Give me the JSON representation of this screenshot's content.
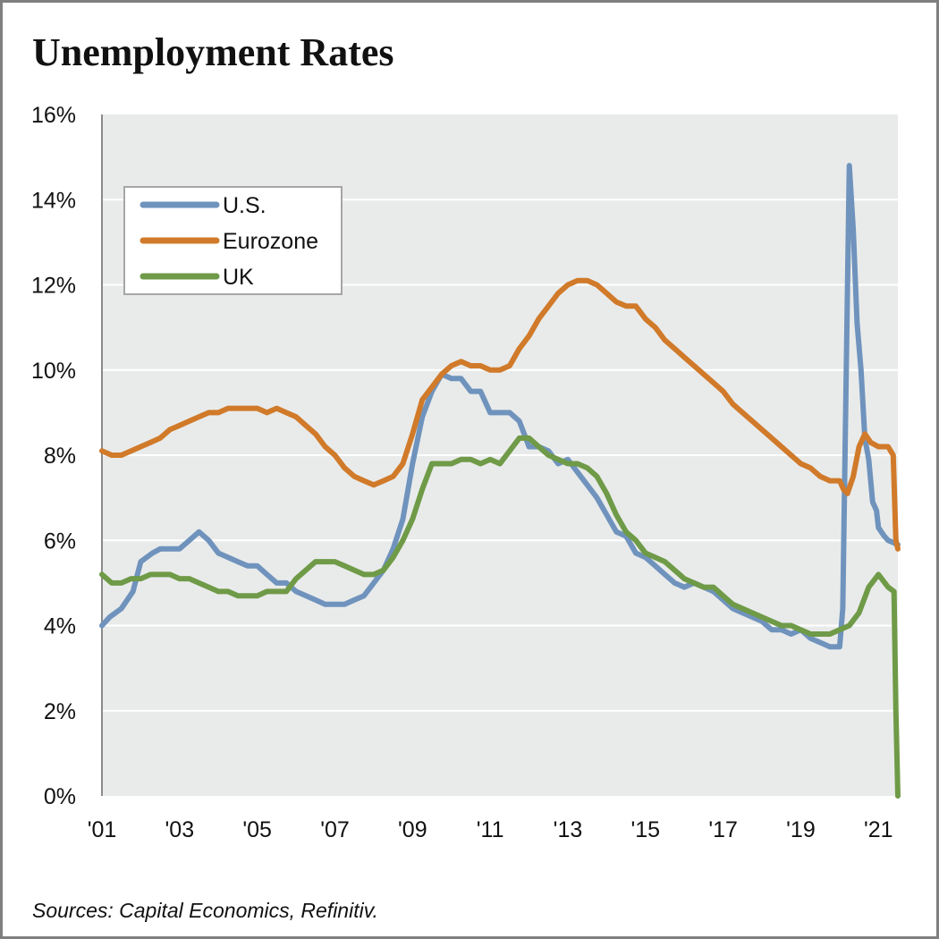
{
  "title": "Unemployment Rates",
  "source": "Sources: Capital Economics, Refinitiv.",
  "chart_data": {
    "type": "line",
    "title": "Unemployment Rates",
    "xlabel": "",
    "ylabel": "",
    "xlim": [
      2001.0,
      2021.5
    ],
    "ylim": [
      0,
      16
    ],
    "y_ticks": [
      0,
      2,
      4,
      6,
      8,
      10,
      12,
      14,
      16
    ],
    "y_tick_labels": [
      "0%",
      "2%",
      "4%",
      "6%",
      "8%",
      "10%",
      "12%",
      "14%",
      "16%"
    ],
    "x_ticks": [
      2001,
      2003,
      2005,
      2007,
      2009,
      2011,
      2013,
      2015,
      2017,
      2019,
      2021
    ],
    "x_tick_labels": [
      "'01",
      "'03",
      "'05",
      "'07",
      "'09",
      "'11",
      "'13",
      "'15",
      "'17",
      "'19",
      "'21"
    ],
    "grid": "horizontal",
    "legend_position": "top-left",
    "series": [
      {
        "name": "U.S.",
        "color": "#6f93bd",
        "points": [
          [
            2001.0,
            4.0
          ],
          [
            2001.2,
            4.2
          ],
          [
            2001.5,
            4.4
          ],
          [
            2001.8,
            4.8
          ],
          [
            2002.0,
            5.5
          ],
          [
            2002.3,
            5.7
          ],
          [
            2002.5,
            5.8
          ],
          [
            2002.8,
            5.8
          ],
          [
            2003.0,
            5.8
          ],
          [
            2003.25,
            6.0
          ],
          [
            2003.5,
            6.2
          ],
          [
            2003.75,
            6.0
          ],
          [
            2004.0,
            5.7
          ],
          [
            2004.25,
            5.6
          ],
          [
            2004.5,
            5.5
          ],
          [
            2004.75,
            5.4
          ],
          [
            2005.0,
            5.4
          ],
          [
            2005.25,
            5.2
          ],
          [
            2005.5,
            5.0
          ],
          [
            2005.75,
            5.0
          ],
          [
            2006.0,
            4.8
          ],
          [
            2006.5,
            4.6
          ],
          [
            2006.75,
            4.5
          ],
          [
            2007.0,
            4.5
          ],
          [
            2007.25,
            4.5
          ],
          [
            2007.5,
            4.6
          ],
          [
            2007.75,
            4.7
          ],
          [
            2008.0,
            5.0
          ],
          [
            2008.25,
            5.3
          ],
          [
            2008.5,
            5.8
          ],
          [
            2008.75,
            6.5
          ],
          [
            2009.0,
            7.8
          ],
          [
            2009.25,
            8.9
          ],
          [
            2009.5,
            9.5
          ],
          [
            2009.75,
            9.9
          ],
          [
            2010.0,
            9.8
          ],
          [
            2010.25,
            9.8
          ],
          [
            2010.5,
            9.5
          ],
          [
            2010.75,
            9.5
          ],
          [
            2011.0,
            9.0
          ],
          [
            2011.25,
            9.0
          ],
          [
            2011.5,
            9.0
          ],
          [
            2011.75,
            8.8
          ],
          [
            2012.0,
            8.2
          ],
          [
            2012.25,
            8.2
          ],
          [
            2012.5,
            8.1
          ],
          [
            2012.75,
            7.8
          ],
          [
            2013.0,
            7.9
          ],
          [
            2013.25,
            7.6
          ],
          [
            2013.5,
            7.3
          ],
          [
            2013.75,
            7.0
          ],
          [
            2014.0,
            6.6
          ],
          [
            2014.25,
            6.2
          ],
          [
            2014.5,
            6.1
          ],
          [
            2014.75,
            5.7
          ],
          [
            2015.0,
            5.6
          ],
          [
            2015.25,
            5.4
          ],
          [
            2015.5,
            5.2
          ],
          [
            2015.75,
            5.0
          ],
          [
            2016.0,
            4.9
          ],
          [
            2016.25,
            5.0
          ],
          [
            2016.5,
            4.9
          ],
          [
            2016.75,
            4.8
          ],
          [
            2017.0,
            4.6
          ],
          [
            2017.25,
            4.4
          ],
          [
            2017.5,
            4.3
          ],
          [
            2017.75,
            4.2
          ],
          [
            2018.0,
            4.1
          ],
          [
            2018.25,
            3.9
          ],
          [
            2018.5,
            3.9
          ],
          [
            2018.75,
            3.8
          ],
          [
            2019.0,
            3.9
          ],
          [
            2019.25,
            3.7
          ],
          [
            2019.5,
            3.6
          ],
          [
            2019.75,
            3.5
          ],
          [
            2020.0,
            3.5
          ],
          [
            2020.08,
            4.4
          ],
          [
            2020.17,
            10.0
          ],
          [
            2020.25,
            14.8
          ],
          [
            2020.35,
            13.3
          ],
          [
            2020.45,
            11.1
          ],
          [
            2020.55,
            10.0
          ],
          [
            2020.65,
            8.4
          ],
          [
            2020.75,
            7.9
          ],
          [
            2020.85,
            6.9
          ],
          [
            2020.95,
            6.7
          ],
          [
            2021.0,
            6.3
          ],
          [
            2021.15,
            6.1
          ],
          [
            2021.25,
            6.0
          ],
          [
            2021.5,
            5.9
          ]
        ]
      },
      {
        "name": "Eurozone",
        "color": "#d07a2a",
        "points": [
          [
            2001.0,
            8.1
          ],
          [
            2001.25,
            8.0
          ],
          [
            2001.5,
            8.0
          ],
          [
            2001.75,
            8.1
          ],
          [
            2002.0,
            8.2
          ],
          [
            2002.25,
            8.3
          ],
          [
            2002.5,
            8.4
          ],
          [
            2002.75,
            8.6
          ],
          [
            2003.0,
            8.7
          ],
          [
            2003.25,
            8.8
          ],
          [
            2003.5,
            8.9
          ],
          [
            2003.75,
            9.0
          ],
          [
            2004.0,
            9.0
          ],
          [
            2004.25,
            9.1
          ],
          [
            2004.5,
            9.1
          ],
          [
            2004.75,
            9.1
          ],
          [
            2005.0,
            9.1
          ],
          [
            2005.25,
            9.0
          ],
          [
            2005.5,
            9.1
          ],
          [
            2005.75,
            9.0
          ],
          [
            2006.0,
            8.9
          ],
          [
            2006.25,
            8.7
          ],
          [
            2006.5,
            8.5
          ],
          [
            2006.75,
            8.2
          ],
          [
            2007.0,
            8.0
          ],
          [
            2007.25,
            7.7
          ],
          [
            2007.5,
            7.5
          ],
          [
            2007.75,
            7.4
          ],
          [
            2008.0,
            7.3
          ],
          [
            2008.25,
            7.4
          ],
          [
            2008.5,
            7.5
          ],
          [
            2008.75,
            7.8
          ],
          [
            2009.0,
            8.5
          ],
          [
            2009.25,
            9.3
          ],
          [
            2009.5,
            9.6
          ],
          [
            2009.75,
            9.9
          ],
          [
            2010.0,
            10.1
          ],
          [
            2010.25,
            10.2
          ],
          [
            2010.5,
            10.1
          ],
          [
            2010.75,
            10.1
          ],
          [
            2011.0,
            10.0
          ],
          [
            2011.25,
            10.0
          ],
          [
            2011.5,
            10.1
          ],
          [
            2011.75,
            10.5
          ],
          [
            2012.0,
            10.8
          ],
          [
            2012.25,
            11.2
          ],
          [
            2012.5,
            11.5
          ],
          [
            2012.75,
            11.8
          ],
          [
            2013.0,
            12.0
          ],
          [
            2013.25,
            12.1
          ],
          [
            2013.5,
            12.1
          ],
          [
            2013.75,
            12.0
          ],
          [
            2014.0,
            11.8
          ],
          [
            2014.25,
            11.6
          ],
          [
            2014.5,
            11.5
          ],
          [
            2014.75,
            11.5
          ],
          [
            2015.0,
            11.2
          ],
          [
            2015.25,
            11.0
          ],
          [
            2015.5,
            10.7
          ],
          [
            2015.75,
            10.5
          ],
          [
            2016.0,
            10.3
          ],
          [
            2016.25,
            10.1
          ],
          [
            2016.5,
            9.9
          ],
          [
            2016.75,
            9.7
          ],
          [
            2017.0,
            9.5
          ],
          [
            2017.25,
            9.2
          ],
          [
            2017.5,
            9.0
          ],
          [
            2017.75,
            8.8
          ],
          [
            2018.0,
            8.6
          ],
          [
            2018.25,
            8.4
          ],
          [
            2018.5,
            8.2
          ],
          [
            2018.75,
            8.0
          ],
          [
            2019.0,
            7.8
          ],
          [
            2019.25,
            7.7
          ],
          [
            2019.5,
            7.5
          ],
          [
            2019.75,
            7.4
          ],
          [
            2020.0,
            7.4
          ],
          [
            2020.1,
            7.2
          ],
          [
            2020.2,
            7.1
          ],
          [
            2020.35,
            7.5
          ],
          [
            2020.5,
            8.2
          ],
          [
            2020.65,
            8.5
          ],
          [
            2020.8,
            8.3
          ],
          [
            2021.0,
            8.2
          ],
          [
            2021.25,
            8.2
          ],
          [
            2021.38,
            8.0
          ],
          [
            2021.45,
            6.0
          ],
          [
            2021.5,
            5.8
          ]
        ]
      },
      {
        "name": "UK",
        "color": "#6f9a47",
        "points": [
          [
            2001.0,
            5.2
          ],
          [
            2001.25,
            5.0
          ],
          [
            2001.5,
            5.0
          ],
          [
            2001.75,
            5.1
          ],
          [
            2002.0,
            5.1
          ],
          [
            2002.25,
            5.2
          ],
          [
            2002.5,
            5.2
          ],
          [
            2002.75,
            5.2
          ],
          [
            2003.0,
            5.1
          ],
          [
            2003.25,
            5.1
          ],
          [
            2003.5,
            5.0
          ],
          [
            2003.75,
            4.9
          ],
          [
            2004.0,
            4.8
          ],
          [
            2004.25,
            4.8
          ],
          [
            2004.5,
            4.7
          ],
          [
            2004.75,
            4.7
          ],
          [
            2005.0,
            4.7
          ],
          [
            2005.25,
            4.8
          ],
          [
            2005.5,
            4.8
          ],
          [
            2005.75,
            4.8
          ],
          [
            2006.0,
            5.1
          ],
          [
            2006.25,
            5.3
          ],
          [
            2006.5,
            5.5
          ],
          [
            2006.75,
            5.5
          ],
          [
            2007.0,
            5.5
          ],
          [
            2007.25,
            5.4
          ],
          [
            2007.5,
            5.3
          ],
          [
            2007.75,
            5.2
          ],
          [
            2008.0,
            5.2
          ],
          [
            2008.25,
            5.3
          ],
          [
            2008.5,
            5.6
          ],
          [
            2008.75,
            6.0
          ],
          [
            2009.0,
            6.5
          ],
          [
            2009.25,
            7.2
          ],
          [
            2009.5,
            7.8
          ],
          [
            2009.75,
            7.8
          ],
          [
            2010.0,
            7.8
          ],
          [
            2010.25,
            7.9
          ],
          [
            2010.5,
            7.9
          ],
          [
            2010.75,
            7.8
          ],
          [
            2011.0,
            7.9
          ],
          [
            2011.25,
            7.8
          ],
          [
            2011.5,
            8.1
          ],
          [
            2011.75,
            8.4
          ],
          [
            2012.0,
            8.4
          ],
          [
            2012.25,
            8.2
          ],
          [
            2012.5,
            8.0
          ],
          [
            2012.75,
            7.9
          ],
          [
            2013.0,
            7.8
          ],
          [
            2013.25,
            7.8
          ],
          [
            2013.5,
            7.7
          ],
          [
            2013.75,
            7.5
          ],
          [
            2014.0,
            7.1
          ],
          [
            2014.25,
            6.6
          ],
          [
            2014.5,
            6.2
          ],
          [
            2014.75,
            6.0
          ],
          [
            2015.0,
            5.7
          ],
          [
            2015.25,
            5.6
          ],
          [
            2015.5,
            5.5
          ],
          [
            2015.75,
            5.3
          ],
          [
            2016.0,
            5.1
          ],
          [
            2016.25,
            5.0
          ],
          [
            2016.5,
            4.9
          ],
          [
            2016.75,
            4.9
          ],
          [
            2017.0,
            4.7
          ],
          [
            2017.25,
            4.5
          ],
          [
            2017.5,
            4.4
          ],
          [
            2017.75,
            4.3
          ],
          [
            2018.0,
            4.2
          ],
          [
            2018.25,
            4.1
          ],
          [
            2018.5,
            4.0
          ],
          [
            2018.75,
            4.0
          ],
          [
            2019.0,
            3.9
          ],
          [
            2019.25,
            3.8
          ],
          [
            2019.5,
            3.8
          ],
          [
            2019.75,
            3.8
          ],
          [
            2020.0,
            3.9
          ],
          [
            2020.25,
            4.0
          ],
          [
            2020.5,
            4.3
          ],
          [
            2020.75,
            4.9
          ],
          [
            2021.0,
            5.2
          ],
          [
            2021.25,
            4.9
          ],
          [
            2021.4,
            4.8
          ],
          [
            2021.45,
            2.0
          ],
          [
            2021.5,
            0.0
          ]
        ]
      }
    ]
  }
}
